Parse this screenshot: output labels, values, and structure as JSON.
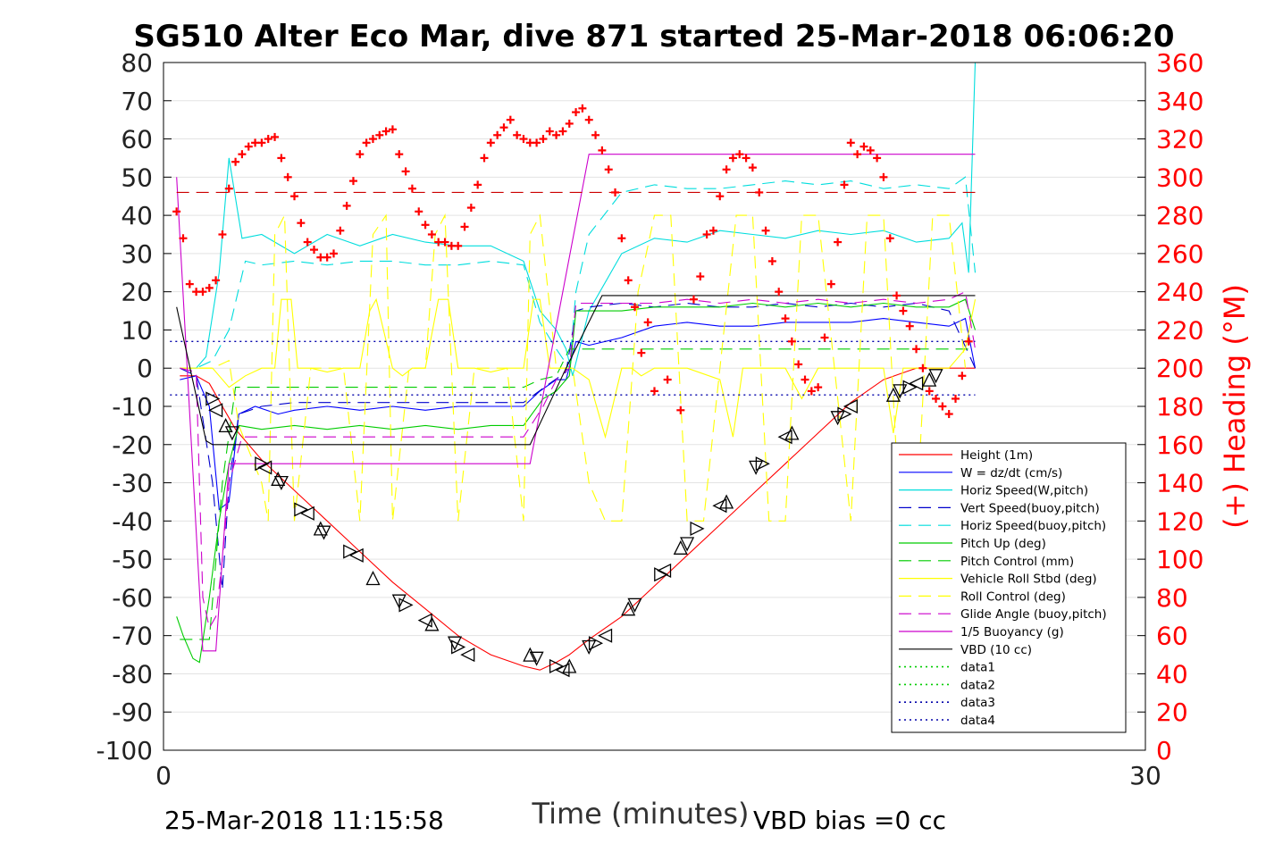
{
  "chart_data": {
    "type": "line",
    "title": "SG510 Alter Eco Mar, dive 871 started 25-Mar-2018 06:06:20",
    "xlabel": "Time (minutes)",
    "ylabel_right": "(+) Heading (°M)",
    "footer_left": "25-Mar-2018 11:15:58",
    "footer_right": "VBD bias =0 cc",
    "xlim": [
      0,
      30
    ],
    "ylim": [
      -100,
      80
    ],
    "ylim_right": [
      0,
      360
    ],
    "x_ticks": [
      "0",
      "30"
    ],
    "y_ticks": [
      "80",
      "70",
      "60",
      "50",
      "40",
      "30",
      "20",
      "10",
      "0",
      "-10",
      "-20",
      "-30",
      "-40",
      "-50",
      "-60",
      "-70",
      "-80",
      "-90",
      "-100"
    ],
    "y_ticks_right": [
      "360",
      "340",
      "320",
      "300",
      "280",
      "260",
      "240",
      "220",
      "200",
      "180",
      "160",
      "140",
      "120",
      "100",
      "80",
      "60",
      "40",
      "20",
      "0"
    ],
    "grid": true,
    "legend_position": "lower-right",
    "series": [
      {
        "name": "Height (1m)",
        "color": "#ff0000",
        "style": "solid",
        "x": [
          0.5,
          1.0,
          1.4,
          1.8,
          2.2,
          3.0,
          4.0,
          5.0,
          6.0,
          7.0,
          8.0,
          9.0,
          10.0,
          11.0,
          11.5,
          12.0,
          12.4,
          13.0,
          14.0,
          15.0,
          16.0,
          17.0,
          18.0,
          19.0,
          20.0,
          21.0,
          22.0,
          23.0,
          24.0,
          24.8
        ],
        "y": [
          -2,
          -2,
          -4,
          -10,
          -16,
          -24,
          -32,
          -40,
          -48,
          -56,
          -63,
          -70,
          -75,
          -78,
          -79,
          -77,
          -75,
          -71,
          -65,
          -57,
          -49,
          -41,
          -33,
          -25,
          -17,
          -9,
          -3,
          0,
          0,
          0
        ]
      },
      {
        "name": "W = dz/dt (cm/s)",
        "color": "#0000ff",
        "style": "solid",
        "x": [
          0.5,
          1.0,
          1.4,
          1.7,
          2.0,
          2.3,
          2.8,
          3.5,
          4.0,
          5.0,
          6.0,
          7.0,
          8.0,
          9.0,
          10.0,
          11.0,
          11.5,
          12.0,
          12.3,
          12.6,
          13.0,
          14.0,
          15.0,
          16.0,
          17.0,
          18.0,
          19.0,
          20.0,
          21.0,
          22.0,
          23.0,
          24.0,
          24.5,
          24.8
        ],
        "y": [
          -3,
          -2,
          -10,
          -37,
          -35,
          -12,
          -10,
          -12,
          -11,
          -10,
          -11,
          -10,
          -11,
          -10,
          -10,
          -10,
          -6,
          -3,
          -3,
          7,
          6,
          8,
          11,
          12,
          11,
          11,
          12,
          12,
          12,
          13,
          12,
          11,
          13,
          0
        ]
      },
      {
        "name": "Horiz Speed(W,pitch)",
        "color": "#00dddd",
        "style": "solid",
        "x": [
          0.5,
          1.0,
          1.3,
          1.7,
          2.0,
          2.4,
          3.0,
          4.0,
          5.0,
          6.0,
          7.0,
          8.0,
          9.0,
          10.0,
          11.0,
          11.5,
          12.0,
          12.3,
          12.5,
          13.0,
          14.0,
          15.0,
          16.0,
          17.0,
          18.0,
          19.0,
          20.0,
          21.0,
          22.0,
          23.0,
          24.0,
          24.4,
          24.6,
          24.8
        ],
        "y": [
          0,
          0,
          3,
          25,
          55,
          34,
          35,
          30,
          35,
          32,
          35,
          33,
          32,
          32,
          28,
          15,
          10,
          5,
          -2,
          15,
          30,
          34,
          33,
          36,
          35,
          34,
          36,
          35,
          36,
          33,
          34,
          38,
          25,
          80
        ]
      },
      {
        "name": "Vert Speed(buoy,pitch)",
        "color": "#0000cc",
        "style": "dashed",
        "x": [
          0.5,
          1.0,
          1.5,
          1.8,
          2.0,
          2.3,
          3.0,
          4.0,
          5.0,
          6.0,
          7.0,
          8.0,
          9.0,
          10.0,
          11.0,
          11.8,
          12.3,
          12.6,
          13.0,
          14.0,
          15.0,
          16.0,
          17.0,
          18.0,
          19.0,
          20.0,
          21.0,
          22.0,
          23.0,
          24.0,
          24.8
        ],
        "y": [
          0,
          -2,
          -30,
          -58,
          -30,
          -12,
          -10,
          -9,
          -9,
          -9,
          -9,
          -9,
          -9,
          -9,
          -9,
          -4,
          -1,
          15,
          16,
          17,
          16,
          17,
          16,
          16,
          17,
          16,
          17,
          16,
          17,
          15,
          0
        ]
      },
      {
        "name": "Horiz Speed(buoy,pitch)",
        "color": "#00dddd",
        "style": "dashed",
        "x": [
          0.5,
          1.0,
          1.5,
          2.0,
          2.5,
          3.0,
          4.0,
          5.0,
          6.0,
          7.0,
          8.0,
          9.0,
          10.0,
          11.0,
          11.5,
          12.0,
          12.4,
          12.6,
          13.0,
          14.0,
          15.0,
          16.0,
          17.0,
          18.0,
          19.0,
          20.0,
          21.0,
          22.0,
          23.0,
          24.0,
          24.5,
          24.8
        ],
        "y": [
          0,
          0,
          2,
          10,
          28,
          27,
          28,
          27,
          28,
          28,
          27,
          27,
          28,
          27,
          12,
          5,
          0,
          20,
          35,
          46,
          48,
          47,
          47,
          48,
          49,
          48,
          49,
          47,
          48,
          47,
          50,
          25
        ]
      },
      {
        "name": "Pitch Up (deg)",
        "color": "#00cc00",
        "style": "solid",
        "x": [
          0.4,
          0.6,
          0.9,
          1.1,
          1.4,
          1.7,
          2.0,
          2.3,
          3.0,
          4.0,
          5.0,
          6.0,
          7.0,
          8.0,
          9.0,
          10.0,
          11.0,
          11.6,
          12.0,
          12.4,
          12.6,
          13.0,
          14.0,
          15.0,
          16.0,
          17.0,
          18.0,
          19.0,
          20.0,
          21.0,
          22.0,
          23.0,
          24.0,
          24.5,
          24.8
        ],
        "y": [
          -65,
          -70,
          -76,
          -77,
          -60,
          -40,
          -25,
          -15,
          -16,
          -15,
          -16,
          -15,
          -16,
          -15,
          -16,
          -15,
          -15,
          -8,
          -6,
          -2,
          15,
          15,
          15,
          16,
          16,
          16,
          17,
          16,
          17,
          16,
          17,
          16,
          16,
          18,
          10
        ]
      },
      {
        "name": "Pitch Control (mm)",
        "color": "#00cc00",
        "style": "dashed",
        "x": [
          0.5,
          1.4,
          1.8,
          2.2,
          3.0,
          5.0,
          7.0,
          9.0,
          11.0,
          11.5,
          12.0,
          12.4,
          13.0,
          15.0,
          17.0,
          19.0,
          21.0,
          23.0,
          24.8
        ],
        "y": [
          -71,
          -71,
          -30,
          -5,
          -5,
          -5,
          -5,
          -5,
          -5,
          -3,
          -2,
          5,
          5,
          5,
          5,
          5,
          5,
          5,
          5
        ]
      },
      {
        "name": "Vehicle Roll Stbd (deg)",
        "color": "#ffff00",
        "style": "solid",
        "x": [
          0.5,
          1.0,
          1.5,
          2.0,
          2.5,
          3.0,
          3.4,
          3.6,
          3.9,
          4.1,
          4.5,
          5.0,
          5.5,
          6.0,
          6.3,
          6.5,
          7.0,
          7.3,
          7.6,
          8.0,
          8.4,
          8.7,
          9.0,
          9.5,
          10.0,
          10.5,
          11.0,
          11.3,
          11.5,
          11.8,
          12.0,
          12.5,
          13.0,
          13.5,
          14.0,
          14.3,
          14.6,
          15.0,
          16.0,
          17.0,
          17.4,
          17.7,
          18.0,
          18.5,
          19.0,
          19.5,
          20.0,
          21.0,
          22.0,
          22.3,
          22.6,
          23.0,
          23.5,
          24.0,
          24.5,
          24.8
        ],
        "y": [
          0,
          0,
          0,
          -5,
          -2,
          0,
          0,
          18,
          18,
          0,
          0,
          -1,
          0,
          0,
          15,
          18,
          0,
          -2,
          0,
          0,
          18,
          18,
          0,
          0,
          -1,
          0,
          0,
          18,
          18,
          0,
          0,
          0,
          -3,
          -18,
          0,
          0,
          -2,
          0,
          0,
          -3,
          -18,
          0,
          0,
          0,
          0,
          -8,
          0,
          0,
          0,
          -17,
          0,
          0,
          0,
          0,
          5,
          18
        ]
      },
      {
        "name": "Roll Control (deg)",
        "color": "#ffff00",
        "style": "dashed",
        "x": [
          0.5,
          1.5,
          2.0,
          2.3,
          3.0,
          3.2,
          3.4,
          3.7,
          4.0,
          4.5,
          5.0,
          5.5,
          6.0,
          6.4,
          6.8,
          7.0,
          7.5,
          8.0,
          8.3,
          8.6,
          9.0,
          9.5,
          10.0,
          10.5,
          11.0,
          11.2,
          11.5,
          12.0,
          12.5,
          13.0,
          13.5,
          14.0,
          14.5,
          15.0,
          15.5,
          16.0,
          16.5,
          17.0,
          17.5,
          18.0,
          18.5,
          19.0,
          19.5,
          20.0,
          20.5,
          21.0,
          21.5,
          22.0,
          22.5,
          23.0,
          23.5,
          24.0,
          24.5
        ],
        "y": [
          0,
          0,
          2,
          -15,
          -30,
          -40,
          35,
          40,
          -40,
          0,
          0,
          0,
          -40,
          35,
          40,
          -40,
          0,
          0,
          35,
          40,
          -40,
          0,
          0,
          0,
          -40,
          35,
          40,
          0,
          0,
          -30,
          -40,
          -40,
          20,
          40,
          40,
          -40,
          -40,
          0,
          40,
          40,
          -40,
          -40,
          40,
          40,
          0,
          -40,
          40,
          40,
          -40,
          -40,
          40,
          40,
          0
        ]
      },
      {
        "name": "Glide Angle (buoy,pitch)",
        "color": "#cc00cc",
        "style": "dashed",
        "x": [
          0.5,
          1.0,
          1.2,
          1.4,
          1.6,
          1.8,
          2.0,
          2.4,
          3.0,
          4.0,
          5.0,
          6.0,
          7.0,
          8.0,
          9.0,
          10.0,
          11.0,
          11.6,
          12.0,
          12.4,
          12.6,
          13.0,
          14.0,
          15.0,
          16.0,
          17.0,
          18.0,
          19.0,
          20.0,
          21.0,
          22.0,
          23.0,
          24.0,
          24.5,
          24.8
        ],
        "y": [
          0,
          -1,
          -60,
          -68,
          -65,
          -50,
          -30,
          -18,
          -18,
          -18,
          -18,
          -18,
          -18,
          -18,
          -18,
          -18,
          -18,
          -10,
          -3,
          0,
          17,
          17,
          17,
          17,
          18,
          17,
          18,
          17,
          18,
          17,
          18,
          17,
          18,
          20,
          5
        ]
      },
      {
        "name": "1/5 Buoyancy (g)",
        "color": "#cc00cc",
        "style": "solid",
        "x": [
          0.4,
          1.2,
          1.6,
          2.0,
          11.2,
          13.0,
          24.8
        ],
        "y": [
          50,
          -74,
          -74,
          -25,
          -25,
          56,
          56
        ]
      },
      {
        "name": "VBD (10 cc)",
        "color": "#000000",
        "style": "solid",
        "x": [
          0.4,
          1.3,
          1.5,
          11.2,
          12.3,
          13.4,
          24.8
        ],
        "y": [
          16,
          -19,
          -20,
          -20,
          0,
          19,
          19
        ]
      },
      {
        "name": "data1",
        "color": "#00cc00",
        "style": "dotted",
        "x": [],
        "y": []
      },
      {
        "name": "data2",
        "color": "#00cc00",
        "style": "dotted",
        "x": [],
        "y": []
      },
      {
        "name": "data3",
        "color": "#0000aa",
        "style": "dotted",
        "x": [
          0.2,
          24.8
        ],
        "y": [
          7,
          7
        ]
      },
      {
        "name": "data4",
        "color": "#0000aa",
        "style": "dotted",
        "x": [
          0.2,
          24.8
        ],
        "y": [
          -7,
          -7
        ]
      }
    ],
    "reference_lines": [
      {
        "color": "#cc0000",
        "style": "dashed",
        "y_right": 292,
        "x": [
          0.4,
          24.8
        ]
      }
    ],
    "heading_points": {
      "color": "#ff0000",
      "marker": "+",
      "axis": "right",
      "x": [
        0.4,
        0.6,
        0.8,
        1.0,
        1.2,
        1.4,
        1.6,
        1.8,
        2.0,
        2.2,
        2.4,
        2.6,
        2.8,
        3.0,
        3.2,
        3.4,
        3.6,
        3.8,
        4.0,
        4.2,
        4.4,
        4.6,
        4.8,
        5.0,
        5.2,
        5.4,
        5.6,
        5.8,
        6.0,
        6.2,
        6.4,
        6.6,
        6.8,
        7.0,
        7.2,
        7.4,
        7.6,
        7.8,
        8.0,
        8.2,
        8.4,
        8.6,
        8.8,
        9.0,
        9.2,
        9.4,
        9.6,
        9.8,
        10.0,
        10.2,
        10.4,
        10.6,
        10.8,
        11.0,
        11.2,
        11.4,
        11.6,
        11.8,
        12.0,
        12.2,
        12.4,
        12.6,
        12.8,
        13.0,
        13.2,
        13.4,
        13.6,
        13.8,
        14.0,
        14.2,
        14.4,
        14.6,
        14.8,
        15.0,
        15.4,
        15.8,
        16.2,
        16.4,
        16.6,
        16.8,
        17.0,
        17.2,
        17.4,
        17.6,
        17.8,
        18.0,
        18.2,
        18.4,
        18.6,
        18.8,
        19.0,
        19.2,
        19.4,
        19.6,
        19.8,
        20.0,
        20.2,
        20.4,
        20.6,
        20.8,
        21.0,
        21.2,
        21.4,
        21.6,
        21.8,
        22.0,
        22.2,
        22.4,
        22.6,
        22.8,
        23.0,
        23.2,
        23.4,
        23.6,
        23.8,
        24.0,
        24.2,
        24.4,
        24.6
      ],
      "y": [
        282,
        268,
        244,
        240,
        240,
        242,
        246,
        270,
        294,
        308,
        312,
        316,
        318,
        318,
        320,
        321,
        310,
        300,
        290,
        276,
        266,
        262,
        258,
        258,
        260,
        272,
        285,
        298,
        312,
        318,
        320,
        322,
        324,
        325,
        312,
        303,
        294,
        282,
        275,
        270,
        266,
        266,
        264,
        264,
        274,
        284,
        296,
        310,
        318,
        322,
        326,
        330,
        322,
        320,
        318,
        318,
        320,
        324,
        322,
        324,
        328,
        334,
        336,
        330,
        322,
        314,
        304,
        292,
        268,
        246,
        232,
        208,
        224,
        188,
        194,
        178,
        236,
        248,
        270,
        272,
        290,
        304,
        310,
        312,
        310,
        305,
        292,
        272,
        256,
        240,
        226,
        214,
        202,
        194,
        188,
        190,
        216,
        244,
        266,
        296,
        318,
        312,
        316,
        314,
        310,
        300,
        268,
        238,
        230,
        222,
        210,
        200,
        188,
        184,
        180,
        176,
        184,
        196,
        214
      ]
    },
    "depth_markers": {
      "color": "#000000",
      "marker": "triangle",
      "x": [
        1.5,
        1.6,
        1.9,
        2.1,
        3.0,
        3.1,
        3.5,
        3.6,
        4.2,
        4.4,
        4.8,
        4.9,
        5.7,
        5.9,
        6.4,
        7.2,
        7.4,
        8.0,
        8.2,
        8.9,
        9.0,
        9.3,
        11.2,
        11.4,
        12.0,
        12.2,
        12.4,
        13.0,
        13.2,
        13.5,
        14.2,
        14.4,
        15.2,
        15.3,
        15.8,
        16.0,
        16.3,
        17.0,
        17.2,
        18.1,
        18.3,
        19.0,
        19.2,
        20.6,
        20.8,
        21.0,
        22.3,
        22.5,
        22.8,
        23.0,
        23.4,
        23.6
      ],
      "y": [
        -8,
        -11,
        -15,
        -17,
        -25,
        -26,
        -29,
        -30,
        -37,
        -38,
        -42,
        -43,
        -48,
        -49,
        -55,
        -61,
        -62,
        -66,
        -67,
        -72,
        -73,
        -75,
        -75,
        -76,
        -78,
        -79,
        -78,
        -73,
        -72,
        -70,
        -63,
        -62,
        -54,
        -53,
        -47,
        -46,
        -42,
        -36,
        -35,
        -26,
        -25,
        -18,
        -17,
        -13,
        -12,
        -10,
        -7,
        -6,
        -5,
        -4,
        -3,
        -2
      ]
    }
  }
}
